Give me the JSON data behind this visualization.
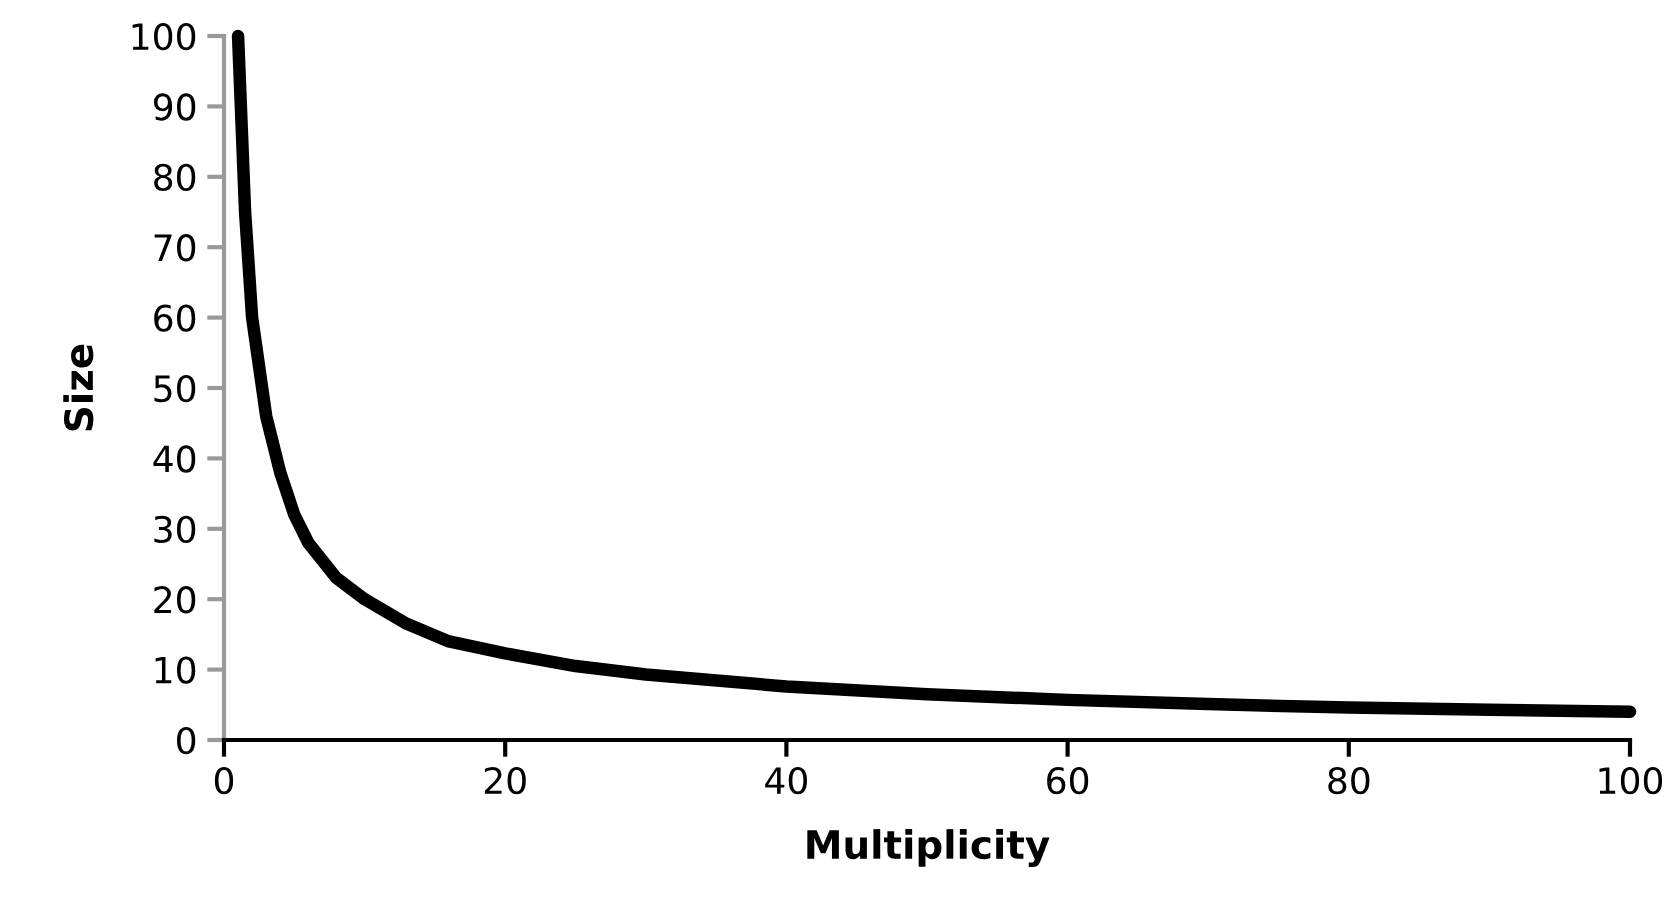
{
  "chart_data": {
    "type": "line",
    "xlabel": "Multiplicity",
    "ylabel": "Size",
    "x": [
      1,
      1.5,
      2,
      3,
      4,
      5,
      6,
      8,
      10,
      13,
      16,
      20,
      25,
      30,
      40,
      50,
      60,
      70,
      80,
      90,
      100
    ],
    "series": [
      {
        "color": "#000000",
        "values": [
          100,
          75,
          60,
          46,
          38,
          32,
          28,
          23,
          20,
          16.5,
          14,
          12.3,
          10.5,
          9.3,
          7.6,
          6.5,
          5.7,
          5.1,
          4.6,
          4.3,
          4
        ]
      }
    ],
    "xlim": [
      0,
      100
    ],
    "xticks": [
      0,
      20,
      40,
      60,
      80,
      100
    ],
    "ylim": [
      0,
      100
    ],
    "yticks": [
      0,
      10,
      20,
      30,
      40,
      50,
      60,
      70,
      80,
      90,
      100
    ],
    "grid": false,
    "legend": false,
    "marker": "none",
    "line_style": "solid"
  }
}
